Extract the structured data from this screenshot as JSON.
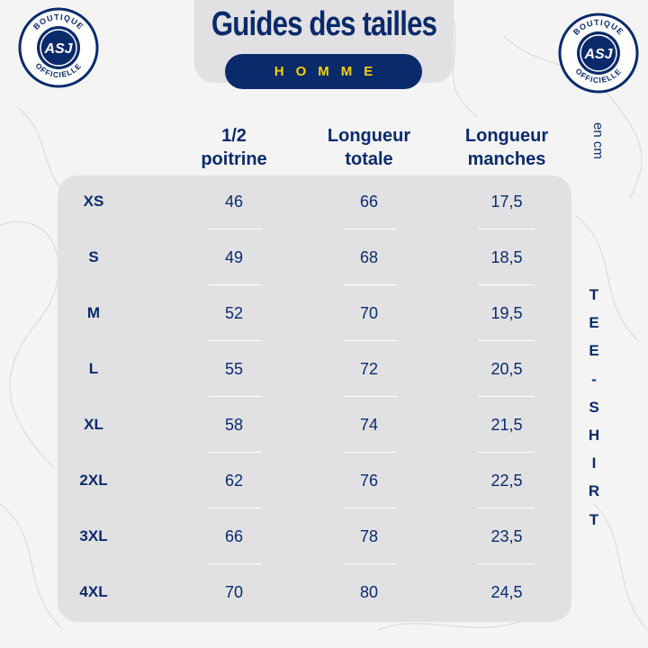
{
  "header": {
    "title": "Guides des tailles",
    "subtitle": "HOMME"
  },
  "badge": {
    "top_text": "BOUTIQUE",
    "bottom_text": "OFFICIELLE",
    "monogram": "ASJ",
    "color": "#0b2a6b"
  },
  "columns": [
    {
      "line1": "1/2",
      "line2": "poitrine"
    },
    {
      "line1": "Longueur",
      "line2": "totale"
    },
    {
      "line1": "Longueur",
      "line2": "manches"
    }
  ],
  "unit": "en cm",
  "product_word": [
    "T",
    "E",
    "E",
    "-",
    "S",
    "H",
    "I",
    "R",
    "T"
  ],
  "rows": [
    {
      "size": "XS",
      "chest": "46",
      "length": "66",
      "sleeve": "17,5"
    },
    {
      "size": "S",
      "chest": "49",
      "length": "68",
      "sleeve": "18,5"
    },
    {
      "size": "M",
      "chest": "52",
      "length": "70",
      "sleeve": "19,5"
    },
    {
      "size": "L",
      "chest": "55",
      "length": "72",
      "sleeve": "20,5"
    },
    {
      "size": "XL",
      "chest": "58",
      "length": "74",
      "sleeve": "21,5"
    },
    {
      "size": "2XL",
      "chest": "62",
      "length": "76",
      "sleeve": "22,5"
    },
    {
      "size": "3XL",
      "chest": "66",
      "length": "78",
      "sleeve": "23,5"
    },
    {
      "size": "4XL",
      "chest": "70",
      "length": "80",
      "sleeve": "24,5"
    }
  ],
  "colors": {
    "navy": "#0b2a6b",
    "yellow": "#f7d200",
    "panel": "#e1e1e3",
    "background": "#f4f4f5"
  }
}
